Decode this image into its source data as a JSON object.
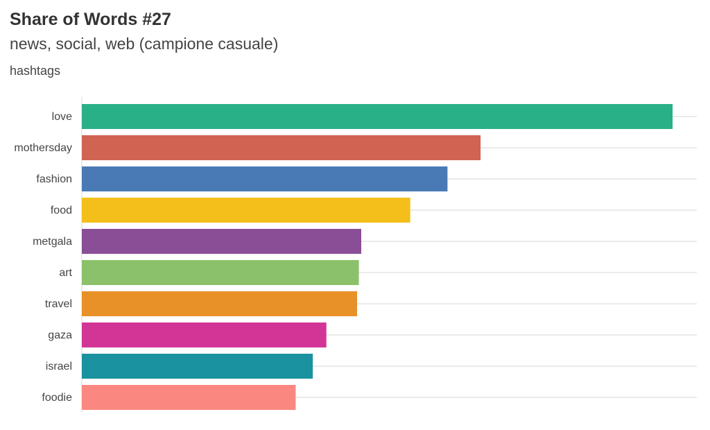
{
  "chart_data": {
    "type": "bar",
    "orientation": "horizontal",
    "title": "Share of Words #27",
    "subtitle": "news, social, web (campione casuale)",
    "caption": "hashtags",
    "xlabel": "",
    "ylabel": "",
    "categories": [
      "love",
      "mothersday",
      "fashion",
      "food",
      "metgala",
      "art",
      "travel",
      "gaza",
      "israel",
      "foodie"
    ],
    "values": [
      100,
      67.5,
      61.9,
      55.6,
      47.3,
      46.9,
      46.6,
      41.4,
      39.1,
      36.2
    ],
    "value_note": "relative scale, longest bar = 100 (no value axis shown)",
    "xlim": [
      0,
      104
    ],
    "colors": [
      "#2ab087",
      "#d16352",
      "#4a7ab5",
      "#f4bf1b",
      "#8a4e96",
      "#8cc16b",
      "#e89129",
      "#d33597",
      "#1a929f",
      "#fa8880"
    ],
    "grid": true,
    "legend": "none"
  }
}
